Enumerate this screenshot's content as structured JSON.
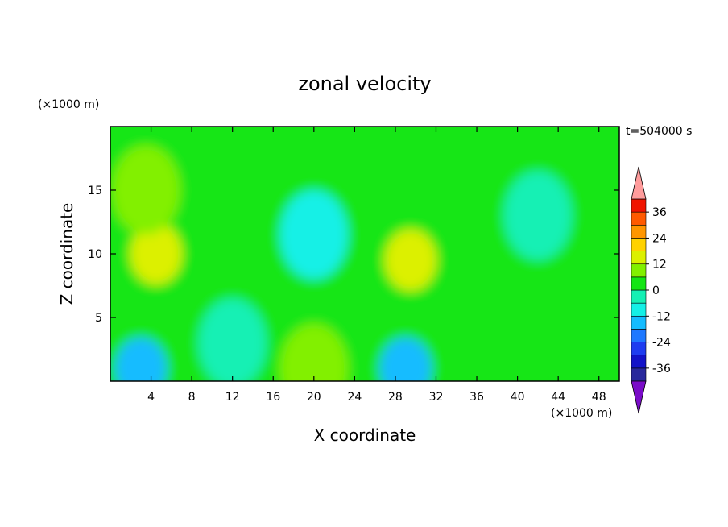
{
  "chart_data": {
    "type": "heatmap",
    "title": "zonal velocity",
    "xlabel": "X coordinate",
    "ylabel": "Z coordinate",
    "x_unit": "(×1000 m)",
    "y_unit": "(×1000 m)",
    "time_label": "t=504000 s",
    "xlim": [
      0,
      50
    ],
    "ylim": [
      0,
      20
    ],
    "x_ticks": [
      4,
      8,
      12,
      16,
      20,
      24,
      28,
      32,
      36,
      40,
      44,
      48
    ],
    "y_ticks": [
      5,
      10,
      15
    ],
    "x_tick_labels": [
      "4",
      "8",
      "12",
      "16",
      "20",
      "24",
      "28",
      "32",
      "36",
      "40",
      "44",
      "48"
    ],
    "y_tick_labels": [
      "5",
      "10",
      "15"
    ],
    "colorbar": {
      "levels": [
        -42,
        -36,
        -30,
        -24,
        -18,
        -12,
        -6,
        0,
        6,
        12,
        18,
        24,
        30,
        36,
        42
      ],
      "labels": [
        "36",
        "24",
        "12",
        "0",
        "-12",
        "-24",
        "-36"
      ],
      "label_values": [
        36,
        24,
        12,
        0,
        -12,
        -24,
        -36
      ],
      "colors": [
        "#7a0cc8",
        "#28289c",
        "#1212c8",
        "#1e3cf0",
        "#1e78ff",
        "#14bcff",
        "#14f0e6",
        "#14f0b4",
        "#14e614",
        "#82f000",
        "#dcf000",
        "#ffd200",
        "#ff9600",
        "#ff5a00",
        "#f01400",
        "#ff9c9c"
      ]
    },
    "features": [
      {
        "x": 4.5,
        "z": 10,
        "value": 14
      },
      {
        "x": 3.5,
        "z": 15,
        "value": 6
      },
      {
        "x": 20,
        "z": 11.5,
        "value": -8
      },
      {
        "x": 29.5,
        "z": 9.5,
        "value": 12
      },
      {
        "x": 42,
        "z": 13,
        "value": -5
      },
      {
        "x": 3,
        "z": 1,
        "value": -14
      },
      {
        "x": 29,
        "z": 1,
        "value": -16
      },
      {
        "x": 20,
        "z": 1,
        "value": 7
      },
      {
        "x": 12,
        "z": 3,
        "value": -3
      }
    ]
  }
}
